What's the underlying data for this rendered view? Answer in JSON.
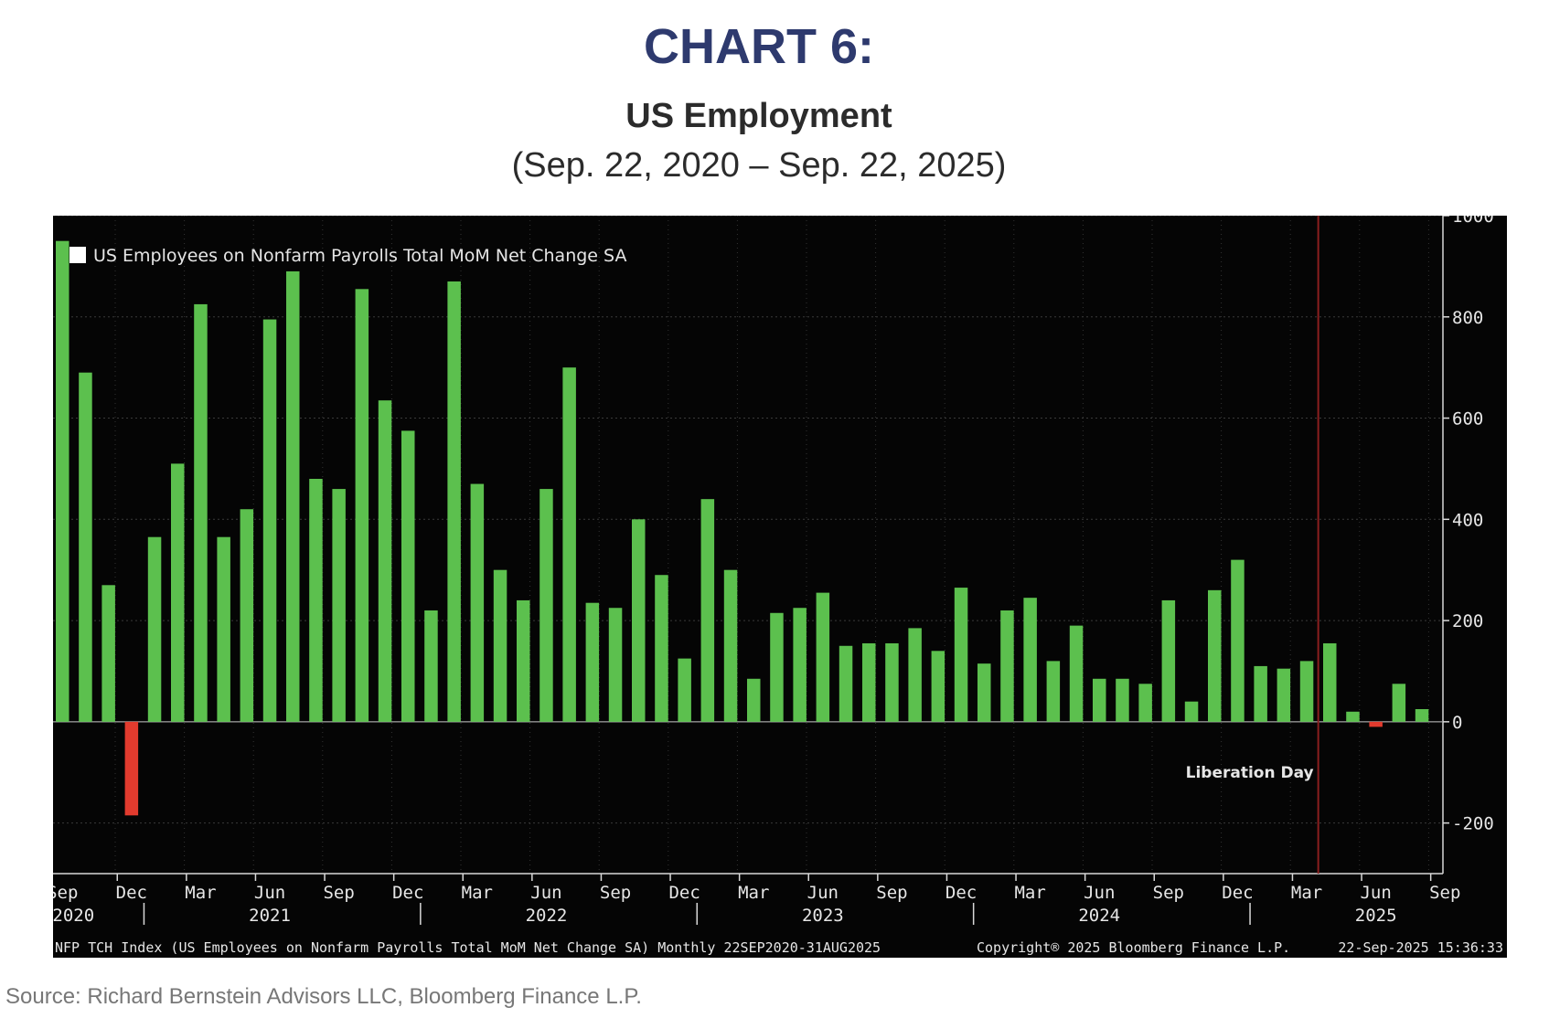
{
  "header": {
    "title": "CHART 6:",
    "subtitle": "US Employment",
    "date_range": "(Sep. 22, 2020 – Sep. 22, 2025)"
  },
  "source": "Source: Richard Bernstein Advisors LLC, Bloomberg Finance L.P.",
  "footer": {
    "index_desc": "NFP TCH Index (US Employees on Nonfarm Payrolls Total MoM Net Change SA)  Monthly 22SEP2020-31AUG2025",
    "copyright": "Copyright® 2025 Bloomberg Finance L.P.",
    "timestamp": "22-Sep-2025 15:36:33"
  },
  "colors": {
    "background": "#050505",
    "positive": "#5cc04e",
    "negative": "#e23b2e",
    "liberation_line": "#8a1f1f",
    "text": "#e6e6e6"
  },
  "chart_data": {
    "type": "bar",
    "legend": "US Employees on Nonfarm Payrolls Total MoM Net Change SA",
    "legend_position": "top-left",
    "grid": true,
    "ylim": [
      -300,
      1000
    ],
    "yticks": [
      1000,
      800,
      600,
      400,
      200,
      0,
      -200
    ],
    "ytick_labels": [
      "1000",
      "800",
      "600",
      "400",
      "200",
      "0",
      "-200"
    ],
    "x_month_ticks": [
      {
        "i": 0,
        "label": "Sep"
      },
      {
        "i": 3,
        "label": "Dec"
      },
      {
        "i": 6,
        "label": "Mar"
      },
      {
        "i": 9,
        "label": "Jun"
      },
      {
        "i": 12,
        "label": "Sep"
      },
      {
        "i": 15,
        "label": "Dec"
      },
      {
        "i": 18,
        "label": "Mar"
      },
      {
        "i": 21,
        "label": "Jun"
      },
      {
        "i": 24,
        "label": "Sep"
      },
      {
        "i": 27,
        "label": "Dec"
      },
      {
        "i": 30,
        "label": "Mar"
      },
      {
        "i": 33,
        "label": "Jun"
      },
      {
        "i": 36,
        "label": "Sep"
      },
      {
        "i": 39,
        "label": "Dec"
      },
      {
        "i": 42,
        "label": "Mar"
      },
      {
        "i": 45,
        "label": "Jun"
      },
      {
        "i": 48,
        "label": "Sep"
      },
      {
        "i": 51,
        "label": "Dec"
      },
      {
        "i": 54,
        "label": "Mar"
      },
      {
        "i": 57,
        "label": "Jun"
      },
      {
        "i": 60,
        "label": "Sep"
      }
    ],
    "x_year_ticks": [
      {
        "i": 0,
        "label": "2020"
      },
      {
        "i": 9,
        "label": "2021"
      },
      {
        "i": 21,
        "label": "2022"
      },
      {
        "i": 33,
        "label": "2023"
      },
      {
        "i": 45,
        "label": "2024"
      },
      {
        "i": 57,
        "label": "2025"
      }
    ],
    "annotation": {
      "label": "Liberation Day",
      "date": "Apr 2025",
      "line_after_index": 54
    },
    "categories": [
      "2020-09",
      "2020-10",
      "2020-11",
      "2020-12",
      "2021-01",
      "2021-02",
      "2021-03",
      "2021-04",
      "2021-05",
      "2021-06",
      "2021-07",
      "2021-08",
      "2021-09",
      "2021-10",
      "2021-11",
      "2021-12",
      "2022-01",
      "2022-02",
      "2022-03",
      "2022-04",
      "2022-05",
      "2022-06",
      "2022-07",
      "2022-08",
      "2022-09",
      "2022-10",
      "2022-11",
      "2022-12",
      "2023-01",
      "2023-02",
      "2023-03",
      "2023-04",
      "2023-05",
      "2023-06",
      "2023-07",
      "2023-08",
      "2023-09",
      "2023-10",
      "2023-11",
      "2023-12",
      "2024-01",
      "2024-02",
      "2024-03",
      "2024-04",
      "2024-05",
      "2024-06",
      "2024-07",
      "2024-08",
      "2024-09",
      "2024-10",
      "2024-11",
      "2024-12",
      "2025-01",
      "2025-02",
      "2025-03",
      "2025-04",
      "2025-05",
      "2025-06",
      "2025-07",
      "2025-08"
    ],
    "values": [
      950,
      690,
      270,
      -185,
      365,
      510,
      825,
      365,
      420,
      795,
      890,
      480,
      460,
      855,
      635,
      575,
      220,
      870,
      470,
      300,
      240,
      460,
      700,
      235,
      225,
      400,
      290,
      125,
      440,
      300,
      85,
      215,
      225,
      255,
      150,
      155,
      155,
      185,
      140,
      265,
      115,
      220,
      245,
      120,
      190,
      85,
      85,
      75,
      240,
      40,
      260,
      320,
      110,
      105,
      120,
      155,
      20,
      -10,
      75,
      25
    ]
  }
}
